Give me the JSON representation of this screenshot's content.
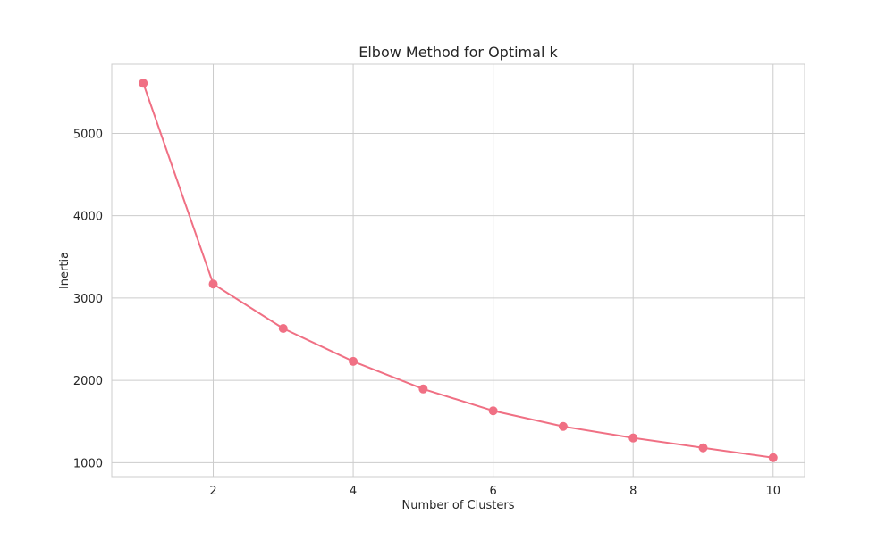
{
  "chart_data": {
    "type": "line",
    "title": "Elbow Method for Optimal k",
    "xlabel": "Number of Clusters",
    "ylabel": "Inertia",
    "x": [
      1,
      2,
      3,
      4,
      5,
      6,
      7,
      8,
      9,
      10
    ],
    "series": [
      {
        "values": [
          5610,
          3170,
          2630,
          2230,
          1895,
          1630,
          1440,
          1300,
          1180,
          1060
        ]
      }
    ],
    "xlim": [
      0.55,
      10.45
    ],
    "ylim": [
      830,
      5840
    ],
    "xticks": [
      2,
      4,
      6,
      8,
      10
    ],
    "yticks": [
      1000,
      2000,
      3000,
      4000,
      5000
    ],
    "grid": true,
    "marker": "circle",
    "colors": {
      "line": "#f07084",
      "grid": "#cccccc",
      "spine": "#cccccc",
      "background": "#ffffff",
      "text": "#262626"
    }
  }
}
